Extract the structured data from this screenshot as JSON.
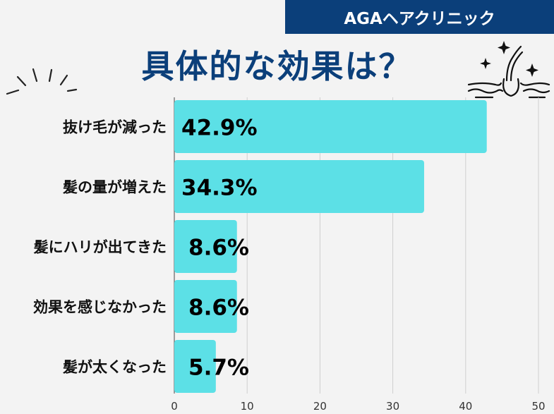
{
  "header": {
    "badge": "AGAヘアクリニック",
    "title": "具体的な効果は？"
  },
  "colors": {
    "navy": "#0b3f7a",
    "bar": "#5ce0e6",
    "background": "#f3f3f3"
  },
  "chart_data": {
    "type": "bar",
    "orientation": "horizontal",
    "categories": [
      "抜け毛が減った",
      "髪の量が増えた",
      "髪にハリが出てきた",
      "効果を感じなかった",
      "髪が太くなった"
    ],
    "values": [
      42.9,
      34.3,
      8.6,
      8.6,
      5.7
    ],
    "value_labels": [
      "42.9%",
      "34.3%",
      "8.6%",
      "8.6%",
      "5.7%"
    ],
    "xlim": [
      0,
      50
    ],
    "xticks": [
      0,
      10,
      20,
      30,
      40,
      50
    ],
    "grid": true
  }
}
